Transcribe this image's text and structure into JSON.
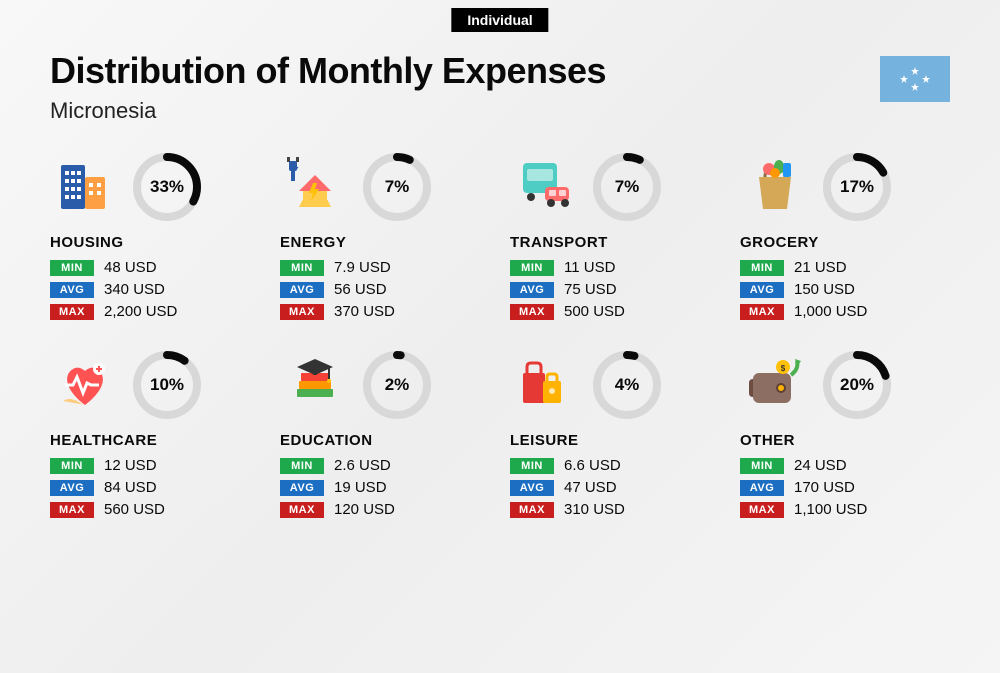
{
  "tag": "Individual",
  "title": "Distribution of Monthly Expenses",
  "subtitle": "Micronesia",
  "flag_bg": "#75b2dd",
  "flag_star_color": "#ffffff",
  "colors": {
    "min_badge": "#1fa94d",
    "avg_badge": "#1b6ec2",
    "max_badge": "#c81e1e",
    "ring_bg": "#d8d8d8",
    "ring_fg": "#0a0a0a",
    "page_bg_grad_a": "#f8f8f8",
    "page_bg_grad_b": "#eeeeee"
  },
  "labels": {
    "min": "MIN",
    "avg": "AVG",
    "max": "MAX"
  },
  "ring": {
    "radius": 30,
    "stroke": 8,
    "circumference": 188.5
  },
  "categories": [
    {
      "name": "HOUSING",
      "pct": 33,
      "min": "48 USD",
      "avg": "340 USD",
      "max": "2,200 USD",
      "icon": "housing"
    },
    {
      "name": "ENERGY",
      "pct": 7,
      "min": "7.9 USD",
      "avg": "56 USD",
      "max": "370 USD",
      "icon": "energy"
    },
    {
      "name": "TRANSPORT",
      "pct": 7,
      "min": "11 USD",
      "avg": "75 USD",
      "max": "500 USD",
      "icon": "transport"
    },
    {
      "name": "GROCERY",
      "pct": 17,
      "min": "21 USD",
      "avg": "150 USD",
      "max": "1,000 USD",
      "icon": "grocery"
    },
    {
      "name": "HEALTHCARE",
      "pct": 10,
      "min": "12 USD",
      "avg": "84 USD",
      "max": "560 USD",
      "icon": "healthcare"
    },
    {
      "name": "EDUCATION",
      "pct": 2,
      "min": "2.6 USD",
      "avg": "19 USD",
      "max": "120 USD",
      "icon": "education"
    },
    {
      "name": "LEISURE",
      "pct": 4,
      "min": "6.6 USD",
      "avg": "47 USD",
      "max": "310 USD",
      "icon": "leisure"
    },
    {
      "name": "OTHER",
      "pct": 20,
      "min": "24 USD",
      "avg": "170 USD",
      "max": "1,100 USD",
      "icon": "other"
    }
  ]
}
